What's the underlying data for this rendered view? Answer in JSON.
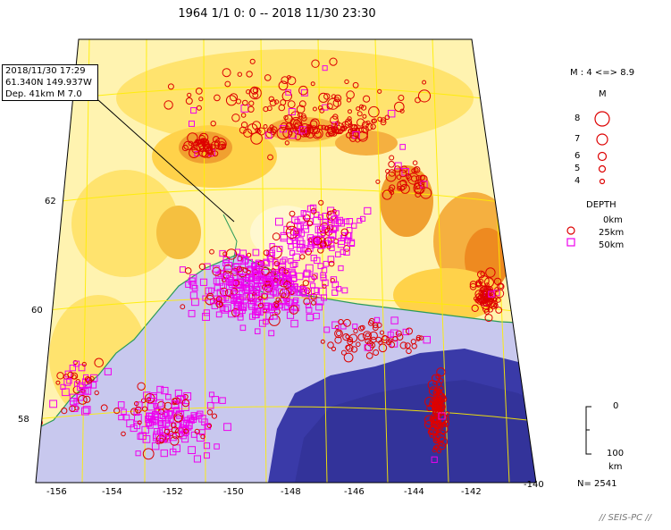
{
  "title": "1964 1/1 0: 0 -- 2018 11/30 23:30",
  "event": {
    "datetime": "2018/11/30 17:29",
    "coords": "61.340N  149.937W",
    "depth_mag": "Dep. 41km    M 7.0"
  },
  "lat_labels": [
    "62",
    "60",
    "58"
  ],
  "lon_labels": [
    "-156",
    "-154",
    "-152",
    "-150",
    "-148",
    "-146",
    "-144",
    "-142",
    "-140"
  ],
  "legend": {
    "range": "M : 4 <=> 8.9",
    "m_header": "M",
    "magnitudes": [
      "8",
      "7",
      "6",
      "5",
      "4"
    ],
    "depth_header": "DEPTH",
    "depths": [
      "0km",
      "25km",
      "50km"
    ],
    "scale_top": "0",
    "scale_bottom": "100",
    "scale_unit": "km",
    "count": "N= 2541"
  },
  "credit": "// SEIS-PC //",
  "colors": {
    "land_light": "#fff3b0",
    "land_mid": "#ffdd55",
    "land_dark": "#f09020",
    "sea_light": "#c8c8ee",
    "sea_deep": "#3a3aa8",
    "grid": "#ffee00",
    "coast": "#2a9a5a",
    "shallow": "#dd0000",
    "deep": "#ee00ee"
  }
}
